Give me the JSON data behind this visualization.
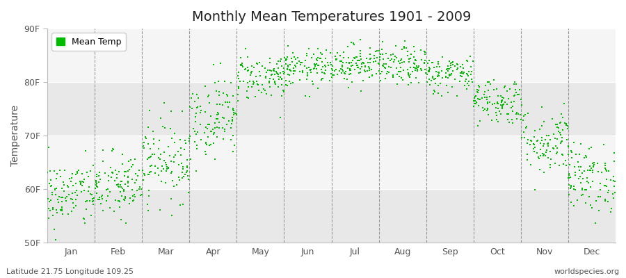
{
  "title": "Monthly Mean Temperatures 1901 - 2009",
  "ylabel": "Temperature",
  "xlabel": "",
  "subtitle_left": "Latitude 21.75 Longitude 109.25",
  "subtitle_right": "worldspecies.org",
  "legend_label": "Mean Temp",
  "dot_color": "#00bb00",
  "background_color": "#ffffff",
  "plot_bg_color": "#ffffff",
  "ylim": [
    50,
    90
  ],
  "yticks": [
    50,
    60,
    70,
    80,
    90
  ],
  "ytick_labels": [
    "50F",
    "60F",
    "70F",
    "80F",
    "90F"
  ],
  "month_names": [
    "Jan",
    "Feb",
    "Mar",
    "Apr",
    "May",
    "Jun",
    "Jul",
    "Aug",
    "Sep",
    "Oct",
    "Nov",
    "Dec"
  ],
  "month_means_F": [
    59.0,
    60.5,
    65.5,
    73.5,
    81.0,
    82.5,
    83.5,
    83.0,
    81.5,
    76.5,
    69.0,
    62.0
  ],
  "month_stds_F": [
    3.2,
    3.2,
    3.8,
    3.8,
    2.2,
    1.8,
    1.8,
    1.8,
    1.8,
    2.2,
    3.2,
    3.2
  ],
  "n_years": 109,
  "seed": 42,
  "marker_size": 4,
  "dashed_line_color": "#999999",
  "band_colors": [
    "#e8e8e8",
    "#f5f5f5"
  ],
  "grid_line_color": "#ffffff",
  "title_fontsize": 14,
  "axis_label_fontsize": 10,
  "tick_label_fontsize": 9,
  "label_color": "#555555"
}
